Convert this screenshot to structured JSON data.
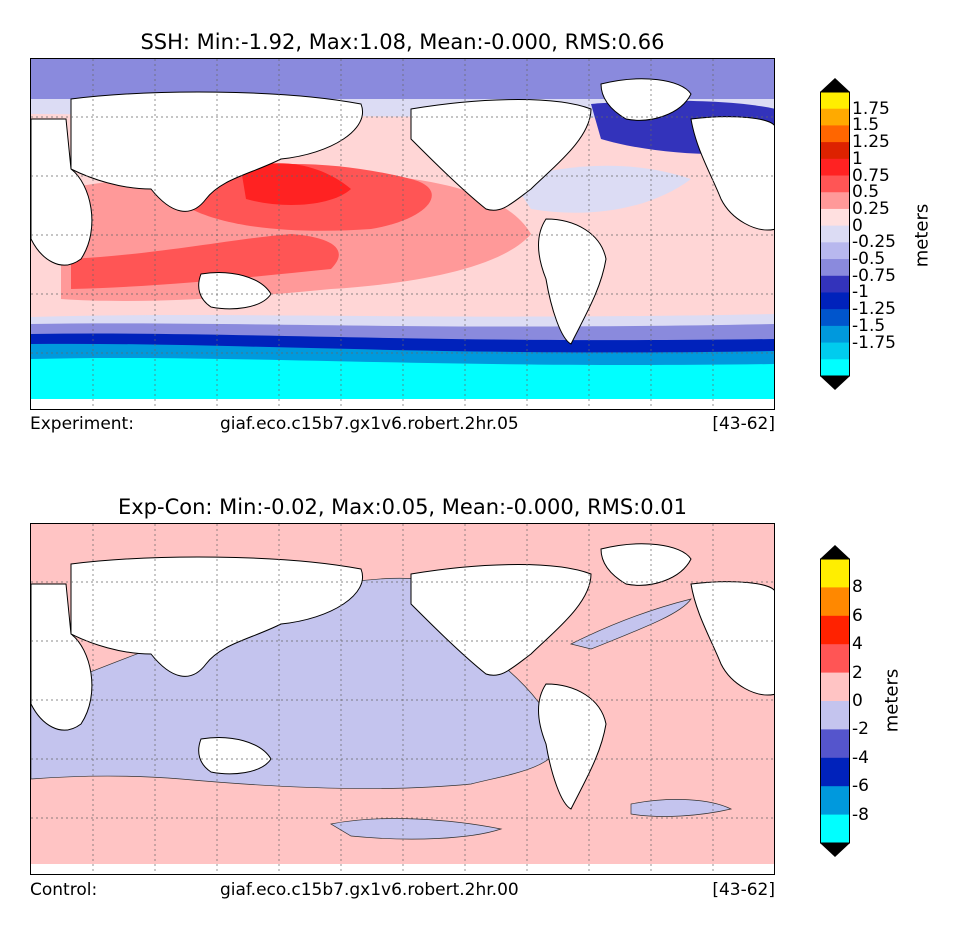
{
  "panel_top": {
    "title": "SSH: Min:-1.92, Max:1.08, Mean:-0.000, RMS:0.66",
    "footer_left": "Experiment:",
    "footer_center": "giaf.eco.c15b7.gx1v6.robert.2hr.05",
    "footer_right": "[43-62]",
    "colorbar_unit": "meters",
    "colorbar_colors": [
      "#00ffff",
      "#00ccee",
      "#0099dd",
      "#0055cc",
      "#0022bb",
      "#3333bb",
      "#8a8add",
      "#b8b8ee",
      "#dcdcf4",
      "#ffe0e0",
      "#ff9999",
      "#ff5555",
      "#ff2222",
      "#dd2200",
      "#ff6600",
      "#ffaa00",
      "#ffee00"
    ],
    "colorbar_ticks": [
      "1.75",
      "1.5",
      "1.25",
      "1",
      "0.75",
      "0.5",
      "0.25",
      "0",
      "-0.25",
      "-0.5",
      "-0.75",
      "-1",
      "-1.25",
      "-1.5",
      "-1.75"
    ]
  },
  "panel_bottom": {
    "title": "Exp-Con: Min:-0.02, Max:0.05, Mean:-0.000, RMS:0.01",
    "footer_left": "Control:",
    "footer_center": "giaf.eco.c15b7.gx1v6.robert.2hr.00",
    "footer_right": "[43-62]",
    "colorbar_unit": "meters",
    "colorbar_colors": [
      "#00ffff",
      "#0099dd",
      "#0022bb",
      "#5555cc",
      "#c4c4ee",
      "#ffc4c4",
      "#ff5555",
      "#ff2200",
      "#ff8800",
      "#ffee00"
    ],
    "colorbar_ticks": [
      "8",
      "6",
      "4",
      "2",
      "0",
      "-2",
      "-4",
      "-6",
      "-8"
    ]
  },
  "colors": {
    "land": "#ffffff",
    "top_ocean_base": "#ffd6d6",
    "bottom_ocean_base": "#ffc4c4",
    "bottom_negative": "#c4c4ee"
  }
}
